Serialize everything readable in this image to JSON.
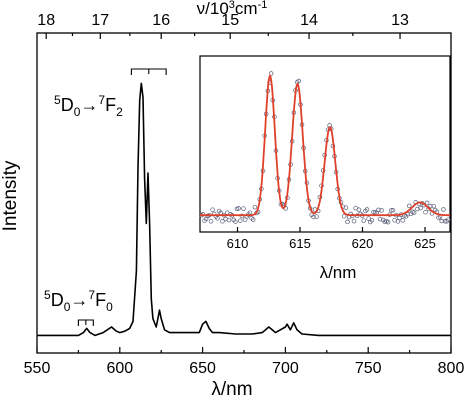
{
  "chart_data": [
    {
      "type": "line",
      "name": "main-spectrum",
      "xlabel": "λ/nm",
      "ylabel": "Intensity",
      "top_axis_label_prefix": "ν/10",
      "top_axis_label_exp": "3",
      "top_axis_label_suffix": "cm",
      "top_axis_label_exp2": "-1",
      "xlim": [
        550,
        800
      ],
      "ylim": [
        0,
        1.0
      ],
      "x_ticks": [
        "550",
        "600",
        "650",
        "700",
        "750",
        "800"
      ],
      "x_tick_values": [
        550,
        600,
        650,
        700,
        750,
        800
      ],
      "top_ticks": [
        "18",
        "17",
        "16",
        "15",
        "14",
        "13"
      ],
      "top_tick_values": [
        18,
        17,
        16,
        15,
        14,
        13
      ],
      "annotations": [
        {
          "id": "f2",
          "pre": "5",
          "a": "D",
          "asub": "0",
          "arrow": "→",
          "post": "7",
          "b": "F",
          "bsub": "2",
          "bracket_nm": [
            607,
            628
          ]
        },
        {
          "id": "f0",
          "pre": "5",
          "a": "D",
          "asub": "0",
          "arrow": "→",
          "post": "7",
          "b": "F",
          "bsub": "0",
          "bracket_nm": [
            575,
            584
          ]
        }
      ],
      "series": [
        {
          "color": "#000000",
          "x": [
            550,
            560,
            570,
            575,
            578,
            580,
            582,
            585,
            590,
            595,
            598,
            600,
            603,
            606,
            608,
            610,
            611,
            612,
            613,
            614,
            615,
            616,
            617,
            618,
            619,
            620,
            622,
            623,
            624,
            625,
            627,
            630,
            640,
            648,
            650,
            652,
            654,
            656,
            660,
            670,
            680,
            686,
            688,
            690,
            692,
            694,
            697,
            700,
            701,
            703,
            705,
            707,
            710,
            720,
            730,
            740,
            750,
            760,
            770,
            780,
            790,
            800
          ],
          "y": [
            0.02,
            0.02,
            0.02,
            0.02,
            0.03,
            0.045,
            0.03,
            0.02,
            0.03,
            0.05,
            0.035,
            0.03,
            0.035,
            0.045,
            0.07,
            0.25,
            0.62,
            0.86,
            0.92,
            0.87,
            0.58,
            0.42,
            0.6,
            0.42,
            0.15,
            0.08,
            0.05,
            0.08,
            0.11,
            0.08,
            0.04,
            0.03,
            0.03,
            0.03,
            0.06,
            0.07,
            0.045,
            0.03,
            0.03,
            0.025,
            0.025,
            0.03,
            0.04,
            0.05,
            0.04,
            0.03,
            0.04,
            0.05,
            0.06,
            0.04,
            0.065,
            0.04,
            0.025,
            0.02,
            0.02,
            0.02,
            0.02,
            0.02,
            0.02,
            0.02,
            0.02,
            0.02
          ]
        }
      ]
    },
    {
      "type": "scatter",
      "name": "inset-spectrum",
      "xlabel": "λ/nm",
      "xlim": [
        607,
        627
      ],
      "ylim": [
        0,
        1.0
      ],
      "x_ticks": [
        "610",
        "615",
        "620",
        "625"
      ],
      "x_tick_values": [
        610,
        615,
        620,
        625
      ],
      "fit_color": "#e0402a",
      "point_color": "#5a5f78",
      "peaks": [
        {
          "center": 612.6,
          "amp": 0.87,
          "width": 0.55
        },
        {
          "center": 614.8,
          "amp": 0.82,
          "width": 0.6
        },
        {
          "center": 617.4,
          "amp": 0.55,
          "width": 0.6
        },
        {
          "center": 624.6,
          "amp": 0.08,
          "width": 0.9
        }
      ],
      "baseline": 0.08
    }
  ]
}
